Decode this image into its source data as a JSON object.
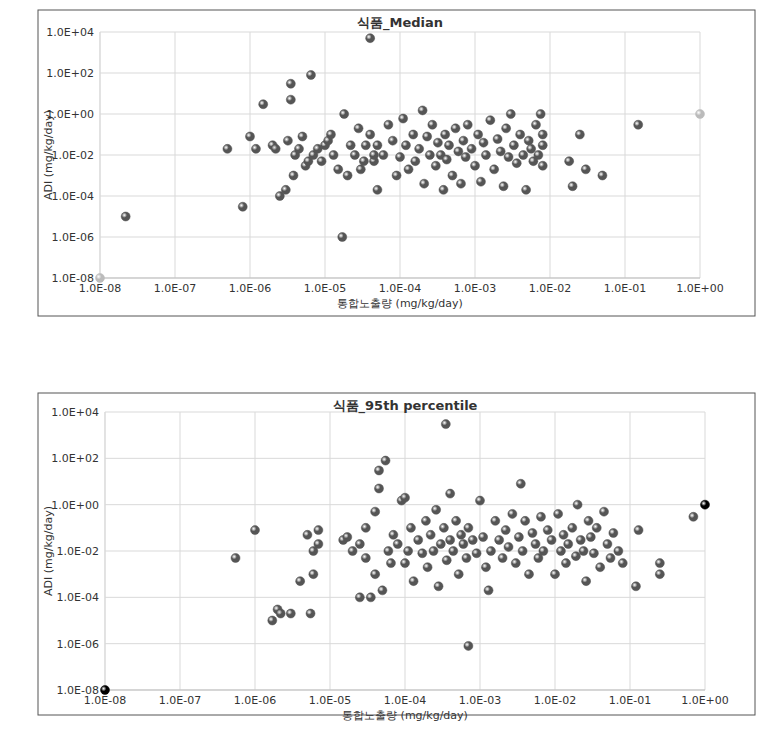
{
  "chart_data": [
    {
      "type": "scatter",
      "title": "식품_Median",
      "x_label": "통합노출량 (mg/kg/day)",
      "y_label": "ADI (mg/kg/day)",
      "log": true,
      "grid": true,
      "marker": "circle",
      "xlim": [
        1e-08,
        1
      ],
      "ylim": [
        1e-08,
        10000
      ],
      "xticks": [
        {
          "value": 1e-08,
          "label": "1.0E-08"
        },
        {
          "value": 1e-07,
          "label": "1.0E-07"
        },
        {
          "value": 1e-06,
          "label": "1.0E-06"
        },
        {
          "value": 1e-05,
          "label": "1.0E-05"
        },
        {
          "value": 0.0001,
          "label": "1.0E-04"
        },
        {
          "value": 0.001,
          "label": "1.0E-03"
        },
        {
          "value": 0.01,
          "label": "1.0E-02"
        },
        {
          "value": 0.1,
          "label": "1.0E-01"
        },
        {
          "value": 1,
          "label": "1.0E+00"
        }
      ],
      "yticks": [
        {
          "value": 1e-08,
          "label": "1.0E-08"
        },
        {
          "value": 1e-06,
          "label": "1.0E-06"
        },
        {
          "value": 0.0001,
          "label": "1.0E-04"
        },
        {
          "value": 0.01,
          "label": "1.0E-02"
        },
        {
          "value": 1,
          "label": "1.0E+00"
        },
        {
          "value": 100,
          "label": "1.0E+02"
        },
        {
          "value": 10000,
          "label": "1.0E+04"
        }
      ],
      "series": [
        {
          "color": "#555555",
          "x": [
            2.2e-08,
            5e-07,
            8e-07,
            1e-06,
            1.2e-06,
            1.5e-06,
            2e-06,
            2.2e-06,
            2.5e-06,
            3e-06,
            3.2e-06,
            3.5e-06,
            3.5e-06,
            3.8e-06,
            4e-06,
            4.5e-06,
            5e-06,
            5.5e-06,
            6e-06,
            6.5e-06,
            7e-06,
            8e-06,
            9e-06,
            1e-05,
            1.1e-05,
            1.2e-05,
            1.3e-05,
            1.5e-05,
            1.7e-05,
            1.8e-05,
            2e-05,
            2.2e-05,
            2.5e-05,
            2.8e-05,
            3e-05,
            3.3e-05,
            3.5e-05,
            4e-05,
            4e-05,
            4.5e-05,
            4.5e-05,
            5e-05,
            5e-05,
            6e-05,
            7e-05,
            8e-05,
            9e-05,
            0.0001,
            0.00011,
            0.00012,
            0.00013,
            0.00015,
            0.00016,
            0.00018,
            0.0002,
            0.00021,
            0.00023,
            0.00025,
            0.00027,
            0.0003,
            0.00032,
            0.00035,
            0.00038,
            0.0004,
            0.00042,
            0.00045,
            0.0005,
            0.00055,
            0.0006,
            0.00065,
            0.0007,
            0.00075,
            0.0008,
            0.0009,
            0.001,
            0.0011,
            0.0012,
            0.0013,
            0.0014,
            0.0016,
            0.0018,
            0.002,
            0.0022,
            0.0024,
            0.0026,
            0.0028,
            0.003,
            0.0033,
            0.0036,
            0.004,
            0.0044,
            0.0048,
            0.0052,
            0.0056,
            0.006,
            0.0065,
            0.007,
            0.0075,
            0.008,
            0.008,
            0.008,
            0.018,
            0.02,
            0.025,
            0.03,
            0.05,
            0.15
          ],
          "values": [
            1e-05,
            0.02,
            3e-05,
            0.08,
            0.02,
            3,
            0.03,
            0.02,
            0.0001,
            0.0002,
            0.05,
            30,
            5,
            0.001,
            0.01,
            0.02,
            0.08,
            0.003,
            0.005,
            80,
            0.01,
            0.02,
            0.005,
            0.03,
            0.05,
            0.1,
            0.01,
            0.002,
            1e-06,
            1,
            0.001,
            0.03,
            0.01,
            0.2,
            0.002,
            0.005,
            0.03,
            5000,
            0.1,
            0.005,
            0.01,
            0.0002,
            0.03,
            0.01,
            0.3,
            0.05,
            0.001,
            0.008,
            0.6,
            0.03,
            0.002,
            0.1,
            0.005,
            0.02,
            1.5,
            0.0004,
            0.08,
            0.01,
            0.3,
            0.003,
            0.04,
            0.01,
            0.0002,
            0.1,
            0.006,
            0.03,
            0.001,
            0.2,
            0.015,
            0.0004,
            0.05,
            0.008,
            0.3,
            0.02,
            0.003,
            0.1,
            0.0005,
            0.04,
            0.01,
            0.5,
            0.002,
            0.06,
            0.015,
            0.0003,
            0.2,
            0.008,
            1,
            0.03,
            0.004,
            0.1,
            0.01,
            0.0002,
            0.05,
            0.02,
            0.005,
            0.3,
            0.01,
            1,
            0.03,
            0.003,
            0.1,
            0.005,
            0.0003,
            0.1,
            0.002,
            0.001,
            0.3
          ]
        },
        {
          "color": "#bbbbbb",
          "x": [
            1e-08,
            1
          ],
          "values": [
            1e-08,
            1
          ]
        }
      ]
    },
    {
      "type": "scatter",
      "title": "식품_95th percentile",
      "x_label": "통합노출량 (mg/kg/day)",
      "y_label": "ADI (mg/kg/day)",
      "log": true,
      "grid": true,
      "marker": "circle",
      "xlim": [
        1e-08,
        1
      ],
      "ylim": [
        1e-08,
        10000
      ],
      "xticks": [
        {
          "value": 1e-08,
          "label": "1.0E-08"
        },
        {
          "value": 1e-07,
          "label": "1.0E-07"
        },
        {
          "value": 1e-06,
          "label": "1.0E-06"
        },
        {
          "value": 1e-05,
          "label": "1.0E-05"
        },
        {
          "value": 0.0001,
          "label": "1.0E-04"
        },
        {
          "value": 0.001,
          "label": "1.0E-03"
        },
        {
          "value": 0.01,
          "label": "1.0E-02"
        },
        {
          "value": 0.1,
          "label": "1.0E-01"
        },
        {
          "value": 1,
          "label": "1.0E+00"
        }
      ],
      "yticks": [
        {
          "value": 1e-08,
          "label": "1.0E-08"
        },
        {
          "value": 1e-06,
          "label": "1.0E-06"
        },
        {
          "value": 0.0001,
          "label": "1.0E-04"
        },
        {
          "value": 0.01,
          "label": "1.0E-02"
        },
        {
          "value": 1,
          "label": "1.0E+00"
        },
        {
          "value": 100,
          "label": "1.0E+02"
        },
        {
          "value": 10000,
          "label": "1.0E+04"
        }
      ],
      "series": [
        {
          "color": "#555555",
          "x": [
            5.5e-07,
            1e-06,
            1.7e-06,
            2e-06,
            2.2e-06,
            3e-06,
            4e-06,
            5e-06,
            5.5e-06,
            6e-06,
            6e-06,
            7e-06,
            7e-06,
            1.5e-05,
            1.7e-05,
            2e-05,
            2.5e-05,
            2.5e-05,
            3e-05,
            3e-05,
            3.5e-05,
            4e-05,
            4e-05,
            4.5e-05,
            4.5e-05,
            5e-05,
            5.5e-05,
            6e-05,
            6.5e-05,
            7e-05,
            8e-05,
            9e-05,
            0.0001,
            0.0001,
            0.00011,
            0.00012,
            0.00013,
            0.00015,
            0.00017,
            0.00019,
            0.0002,
            0.00022,
            0.00024,
            0.00026,
            0.00028,
            0.0003,
            0.00033,
            0.00035,
            0.00036,
            0.0004,
            0.0004,
            0.00044,
            0.00048,
            0.00052,
            0.00056,
            0.0006,
            0.00066,
            0.0007,
            0.0007,
            0.0008,
            0.0009,
            0.001,
            0.0011,
            0.0012,
            0.0013,
            0.0014,
            0.0016,
            0.0018,
            0.002,
            0.0022,
            0.0024,
            0.0027,
            0.003,
            0.0033,
            0.0035,
            0.0037,
            0.004,
            0.0045,
            0.005,
            0.0055,
            0.006,
            0.0065,
            0.007,
            0.008,
            0.009,
            0.01,
            0.011,
            0.012,
            0.013,
            0.014,
            0.015,
            0.017,
            0.019,
            0.02,
            0.022,
            0.024,
            0.026,
            0.028,
            0.03,
            0.033,
            0.036,
            0.04,
            0.045,
            0.05,
            0.055,
            0.06,
            0.07,
            0.08,
            0.12,
            0.13,
            0.25,
            0.25,
            0.7
          ],
          "values": [
            0.005,
            0.08,
            1e-05,
            3e-05,
            2e-05,
            2e-05,
            0.0005,
            0.05,
            2e-05,
            0.001,
            0.01,
            0.08,
            0.02,
            0.03,
            0.04,
            0.01,
            0.0001,
            0.02,
            0.005,
            0.1,
            0.0001,
            0.5,
            0.001,
            30,
            5,
            0.0002,
            80,
            0.01,
            0.003,
            0.05,
            0.02,
            1.5,
            2,
            0.003,
            0.01,
            0.1,
            0.0005,
            0.03,
            0.008,
            0.2,
            0.002,
            0.05,
            0.01,
            0.6,
            0.0003,
            0.02,
            0.1,
            3000,
            0.004,
            3,
            0.03,
            0.01,
            0.2,
            0.001,
            0.05,
            0.02,
            0.005,
            8e-07,
            0.1,
            0.03,
            0.008,
            1.5,
            0.04,
            0.002,
            0.0002,
            0.01,
            0.2,
            0.03,
            0.005,
            0.08,
            0.015,
            0.4,
            0.003,
            0.04,
            8,
            0.01,
            0.2,
            0.001,
            0.06,
            0.02,
            0.005,
            0.3,
            0.01,
            0.08,
            0.03,
            0.001,
            0.4,
            0.01,
            0.05,
            0.003,
            0.02,
            0.1,
            0.006,
            1,
            0.03,
            0.01,
            0.0005,
            0.2,
            0.04,
            0.008,
            0.1,
            0.002,
            0.5,
            0.02,
            0.005,
            0.06,
            0.01,
            0.003,
            0.0003,
            0.08,
            0.003,
            0.001,
            0.3
          ]
        },
        {
          "color": "#000000",
          "x": [
            1e-08,
            1
          ],
          "values": [
            1e-08,
            1
          ]
        }
      ]
    }
  ]
}
